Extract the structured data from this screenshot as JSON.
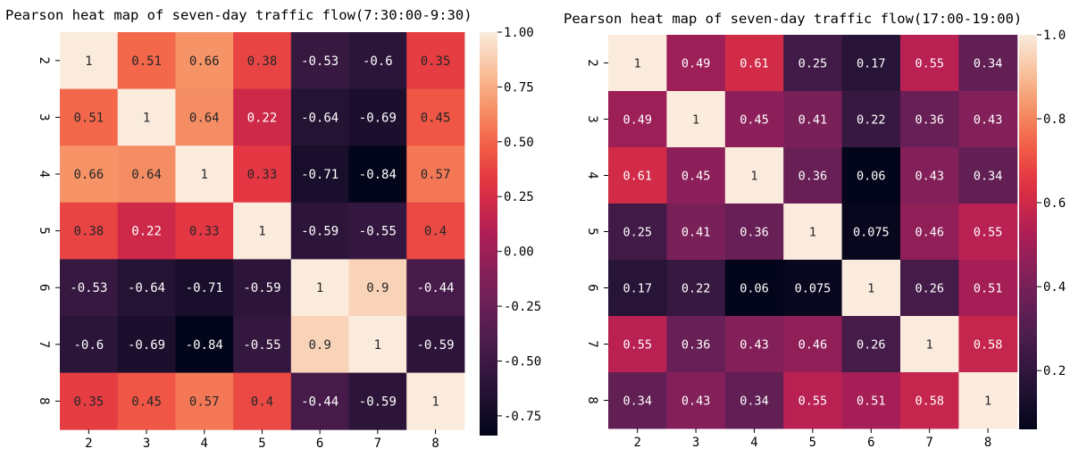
{
  "chart_data": [
    {
      "type": "heatmap",
      "title": "Pearson heat map of seven-day traffic flow(7:30:00-9:30)",
      "x_labels": [
        "2",
        "3",
        "4",
        "5",
        "6",
        "7",
        "8"
      ],
      "y_labels": [
        "2",
        "3",
        "4",
        "5",
        "6",
        "7",
        "8"
      ],
      "values": [
        [
          1,
          0.51,
          0.66,
          0.38,
          -0.53,
          -0.6,
          0.35
        ],
        [
          0.51,
          1,
          0.64,
          0.22,
          -0.64,
          -0.69,
          0.45
        ],
        [
          0.66,
          0.64,
          1,
          0.33,
          -0.71,
          -0.84,
          0.57
        ],
        [
          0.38,
          0.22,
          0.33,
          1,
          -0.59,
          -0.55,
          0.4
        ],
        [
          -0.53,
          -0.64,
          -0.71,
          -0.59,
          1,
          0.9,
          -0.44
        ],
        [
          -0.6,
          -0.69,
          -0.84,
          -0.55,
          0.9,
          1,
          -0.59
        ],
        [
          0.35,
          0.45,
          0.57,
          0.4,
          -0.44,
          -0.59,
          1
        ]
      ],
      "value_labels": [
        [
          "1",
          "0.51",
          "0.66",
          "0.38",
          "-0.53",
          "-0.6",
          "0.35"
        ],
        [
          "0.51",
          "1",
          "0.64",
          "0.22",
          "-0.64",
          "-0.69",
          "0.45"
        ],
        [
          "0.66",
          "0.64",
          "1",
          "0.33",
          "-0.71",
          "-0.84",
          "0.57"
        ],
        [
          "0.38",
          "0.22",
          "0.33",
          "1",
          "-0.59",
          "-0.55",
          "0.4"
        ],
        [
          "-0.53",
          "-0.64",
          "-0.71",
          "-0.59",
          "1",
          "0.9",
          "-0.44"
        ],
        [
          "-0.6",
          "-0.69",
          "-0.84",
          "-0.55",
          "0.9",
          "1",
          "-0.59"
        ],
        [
          "0.35",
          "0.45",
          "0.57",
          "0.4",
          "-0.44",
          "-0.59",
          "1"
        ]
      ],
      "colormap": "rocket",
      "vmin": -0.84,
      "vmax": 1,
      "colorbar_ticks": [
        {
          "value": 1.0,
          "label": "1.00"
        },
        {
          "value": 0.75,
          "label": "0.75"
        },
        {
          "value": 0.5,
          "label": "0.50"
        },
        {
          "value": 0.25,
          "label": "0.25"
        },
        {
          "value": 0.0,
          "label": "0.00"
        },
        {
          "value": -0.25,
          "label": "-0.25"
        },
        {
          "value": -0.5,
          "label": "-0.50"
        },
        {
          "value": -0.75,
          "label": "-0.75"
        }
      ],
      "grid": false,
      "legend": "colorbar-right"
    },
    {
      "type": "heatmap",
      "title": "Pearson heat map of seven-day traffic flow(17:00-19:00)",
      "x_labels": [
        "2",
        "3",
        "4",
        "5",
        "6",
        "7",
        "8"
      ],
      "y_labels": [
        "2",
        "3",
        "4",
        "5",
        "6",
        "7",
        "8"
      ],
      "values": [
        [
          1,
          0.49,
          0.61,
          0.25,
          0.17,
          0.55,
          0.34
        ],
        [
          0.49,
          1,
          0.45,
          0.41,
          0.22,
          0.36,
          0.43
        ],
        [
          0.61,
          0.45,
          1,
          0.36,
          0.06,
          0.43,
          0.34
        ],
        [
          0.25,
          0.41,
          0.36,
          1,
          0.075,
          0.46,
          0.55
        ],
        [
          0.17,
          0.22,
          0.06,
          0.075,
          1,
          0.26,
          0.51
        ],
        [
          0.55,
          0.36,
          0.43,
          0.46,
          0.26,
          1,
          0.58
        ],
        [
          0.34,
          0.43,
          0.34,
          0.55,
          0.51,
          0.58,
          1
        ]
      ],
      "value_labels": [
        [
          "1",
          "0.49",
          "0.61",
          "0.25",
          "0.17",
          "0.55",
          "0.34"
        ],
        [
          "0.49",
          "1",
          "0.45",
          "0.41",
          "0.22",
          "0.36",
          "0.43"
        ],
        [
          "0.61",
          "0.45",
          "1",
          "0.36",
          "0.06",
          "0.43",
          "0.34"
        ],
        [
          "0.25",
          "0.41",
          "0.36",
          "1",
          "0.075",
          "0.46",
          "0.55"
        ],
        [
          "0.17",
          "0.22",
          "0.06",
          "0.075",
          "1",
          "0.26",
          "0.51"
        ],
        [
          "0.55",
          "0.36",
          "0.43",
          "0.46",
          "0.26",
          "1",
          "0.58"
        ],
        [
          "0.34",
          "0.43",
          "0.34",
          "0.55",
          "0.51",
          "0.58",
          "1"
        ]
      ],
      "colormap": "rocket",
      "vmin": 0.06,
      "vmax": 1,
      "colorbar_ticks": [
        {
          "value": 1.0,
          "label": "1.0"
        },
        {
          "value": 0.8,
          "label": "0.8"
        },
        {
          "value": 0.6,
          "label": "0.6"
        },
        {
          "value": 0.4,
          "label": "0.4"
        },
        {
          "value": 0.2,
          "label": "0.2"
        }
      ],
      "grid": false,
      "legend": "colorbar-right"
    }
  ]
}
